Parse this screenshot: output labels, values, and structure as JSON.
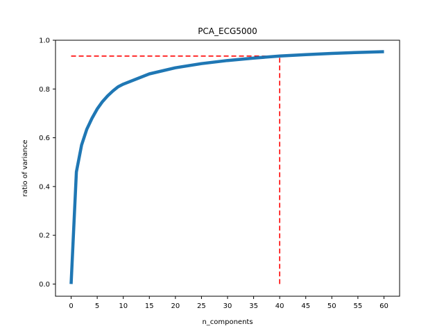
{
  "chart_data": {
    "type": "line",
    "title": "PCA_ECG5000",
    "xlabel": "n_components",
    "ylabel": "ratio of variance",
    "xlim": [
      -3,
      63
    ],
    "ylim": [
      -0.05,
      1.0
    ],
    "xticks": [
      0,
      5,
      10,
      15,
      20,
      25,
      30,
      35,
      40,
      45,
      50,
      55,
      60
    ],
    "yticks": [
      0.0,
      0.2,
      0.4,
      0.6,
      0.8,
      1.0
    ],
    "ytick_labels": [
      "0.0",
      "0.2",
      "0.4",
      "0.6",
      "0.8",
      "1.0"
    ],
    "grid": false,
    "series": [
      {
        "color": "#1f77b4",
        "x": [
          0,
          1,
          2,
          3,
          4,
          5,
          6,
          7,
          8,
          9,
          10,
          15,
          20,
          25,
          30,
          35,
          40,
          45,
          50,
          55,
          60
        ],
        "y": [
          0.0,
          0.46,
          0.57,
          0.635,
          0.68,
          0.718,
          0.748,
          0.772,
          0.792,
          0.809,
          0.82,
          0.862,
          0.887,
          0.904,
          0.917,
          0.927,
          0.935,
          0.941,
          0.946,
          0.95,
          0.953
        ]
      }
    ],
    "annotations": [
      {
        "type": "hline",
        "y": 0.935,
        "x_from": 0,
        "x_to": 40,
        "color": "#ff0000",
        "style": "dashed"
      },
      {
        "type": "vline",
        "x": 40,
        "y_from": 0.0,
        "y_to": 0.935,
        "color": "#ff0000",
        "style": "dashed"
      }
    ]
  }
}
